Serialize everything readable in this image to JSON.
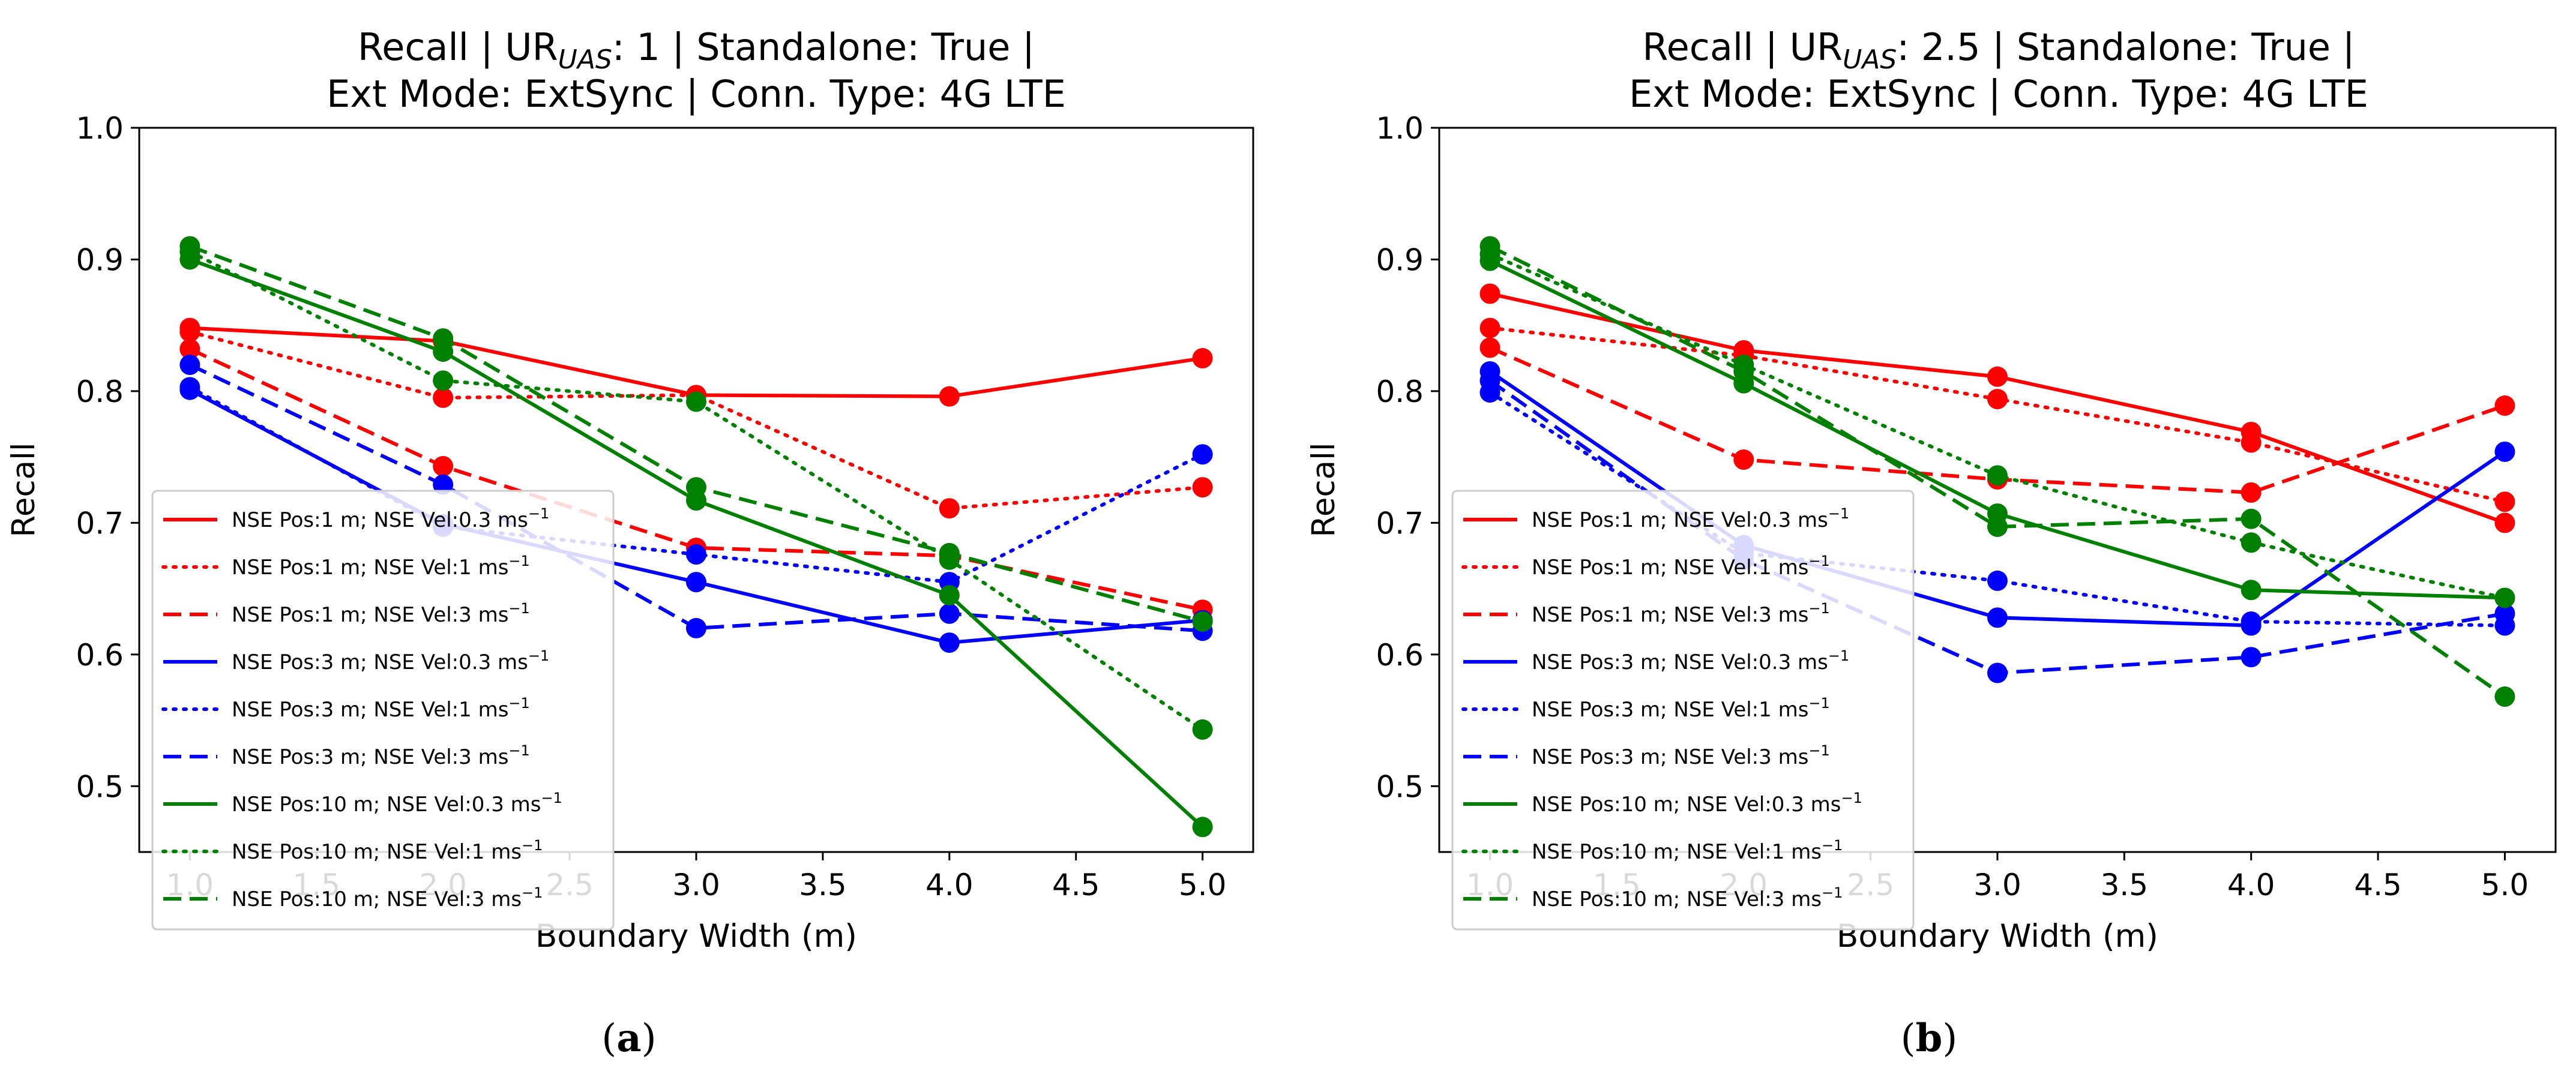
{
  "chart_data": [
    {
      "type": "line",
      "title_line1": "Recall | UR",
      "title_sub": "UAS",
      "title_line1_end": ": 1 | Standalone: True |",
      "title_line2": "Ext Mode: ExtSync | Conn. Type: 4G LTE",
      "xlabel": "Boundary  Width (m)",
      "ylabel": "Recall",
      "xlim": [
        0.8,
        5.2
      ],
      "ylim": [
        0.45,
        1.0
      ],
      "xticks": [
        "1.0",
        "1.5",
        "2.0",
        "2.5",
        "3.0",
        "3.5",
        "4.0",
        "4.5",
        "5.0"
      ],
      "yticks": [
        "0.5",
        "0.6",
        "0.7",
        "0.8",
        "0.9",
        "1.0"
      ],
      "legend_position": "lower-left",
      "caption_label": "a",
      "x": [
        1,
        2,
        3,
        4,
        5
      ],
      "series": [
        {
          "name": "NSE Pos:1 m; NSE Vel:0.3 ms",
          "unit_sup": "−1",
          "color": "#ff0000",
          "dash": "solid",
          "values": [
            0.848,
            0.838,
            0.797,
            0.796,
            0.825
          ]
        },
        {
          "name": "NSE Pos:1 m; NSE Vel:1 ms",
          "unit_sup": "−1",
          "color": "#ff0000",
          "dash": "dotted",
          "values": [
            0.845,
            0.795,
            0.797,
            0.711,
            0.727
          ]
        },
        {
          "name": "NSE Pos:1 m; NSE Vel:3 ms",
          "unit_sup": "−1",
          "color": "#ff0000",
          "dash": "dashed",
          "values": [
            0.832,
            0.743,
            0.681,
            0.675,
            0.634
          ]
        },
        {
          "name": "NSE Pos:3 m; NSE Vel:0.3 ms",
          "unit_sup": "−1",
          "color": "#0000ff",
          "dash": "solid",
          "values": [
            0.801,
            0.699,
            0.655,
            0.609,
            0.626
          ]
        },
        {
          "name": "NSE Pos:3 m; NSE Vel:1 ms",
          "unit_sup": "−1",
          "color": "#0000ff",
          "dash": "dotted",
          "values": [
            0.803,
            0.697,
            0.676,
            0.655,
            0.752
          ]
        },
        {
          "name": "NSE Pos:3 m; NSE Vel:3 ms",
          "unit_sup": "−1",
          "color": "#0000ff",
          "dash": "dashed",
          "values": [
            0.82,
            0.729,
            0.62,
            0.631,
            0.618
          ]
        },
        {
          "name": "NSE Pos:10 m; NSE Vel:0.3 ms",
          "unit_sup": "−1",
          "color": "#008000",
          "dash": "solid",
          "values": [
            0.9,
            0.83,
            0.717,
            0.645,
            0.469
          ]
        },
        {
          "name": "NSE Pos:10 m; NSE Vel:1 ms",
          "unit_sup": "−1",
          "color": "#008000",
          "dash": "dotted",
          "values": [
            0.906,
            0.808,
            0.792,
            0.672,
            0.543
          ]
        },
        {
          "name": "NSE Pos:10 m; NSE Vel:3 ms",
          "unit_sup": "−1",
          "color": "#008000",
          "dash": "dashed",
          "values": [
            0.91,
            0.84,
            0.727,
            0.677,
            0.625
          ]
        }
      ]
    },
    {
      "type": "line",
      "title_line1": "Recall | UR",
      "title_sub": "UAS",
      "title_line1_end": ": 2.5 | Standalone: True |",
      "title_line2": "Ext Mode: ExtSync | Conn. Type: 4G LTE",
      "xlabel": "Boundary  Width (m)",
      "ylabel": "Recall",
      "xlim": [
        0.8,
        5.2
      ],
      "ylim": [
        0.45,
        1.0
      ],
      "xticks": [
        "1.0",
        "1.5",
        "2.0",
        "2.5",
        "3.0",
        "3.5",
        "4.0",
        "4.5",
        "5.0"
      ],
      "yticks": [
        "0.5",
        "0.6",
        "0.7",
        "0.8",
        "0.9",
        "1.0"
      ],
      "legend_position": "lower-left",
      "caption_label": "b",
      "x": [
        1,
        2,
        3,
        4,
        5
      ],
      "series": [
        {
          "name": "NSE Pos:1 m; NSE Vel:0.3 ms",
          "unit_sup": "−1",
          "color": "#ff0000",
          "dash": "solid",
          "values": [
            0.874,
            0.831,
            0.811,
            0.769,
            0.7
          ]
        },
        {
          "name": "NSE Pos:1 m; NSE Vel:1 ms",
          "unit_sup": "−1",
          "color": "#ff0000",
          "dash": "dotted",
          "values": [
            0.848,
            0.827,
            0.794,
            0.761,
            0.716
          ]
        },
        {
          "name": "NSE Pos:1 m; NSE Vel:3 ms",
          "unit_sup": "−1",
          "color": "#ff0000",
          "dash": "dashed",
          "values": [
            0.833,
            0.748,
            0.733,
            0.723,
            0.789
          ]
        },
        {
          "name": "NSE Pos:3 m; NSE Vel:0.3 ms",
          "unit_sup": "−1",
          "color": "#0000ff",
          "dash": "solid",
          "values": [
            0.815,
            0.683,
            0.628,
            0.622,
            0.754
          ]
        },
        {
          "name": "NSE Pos:3 m; NSE Vel:1 ms",
          "unit_sup": "−1",
          "color": "#0000ff",
          "dash": "dotted",
          "values": [
            0.799,
            0.677,
            0.656,
            0.625,
            0.622
          ]
        },
        {
          "name": "NSE Pos:3 m; NSE Vel:3 ms",
          "unit_sup": "−1",
          "color": "#0000ff",
          "dash": "dashed",
          "values": [
            0.808,
            0.672,
            0.586,
            0.598,
            0.631
          ]
        },
        {
          "name": "NSE Pos:10 m; NSE Vel:0.3 ms",
          "unit_sup": "−1",
          "color": "#008000",
          "dash": "solid",
          "values": [
            0.899,
            0.806,
            0.707,
            0.649,
            0.643
          ]
        },
        {
          "name": "NSE Pos:10 m; NSE Vel:1 ms",
          "unit_sup": "−1",
          "color": "#008000",
          "dash": "dotted",
          "values": [
            0.904,
            0.82,
            0.736,
            0.685,
            0.643
          ]
        },
        {
          "name": "NSE Pos:10 m; NSE Vel:3 ms",
          "unit_sup": "−1",
          "color": "#008000",
          "dash": "dashed",
          "values": [
            0.91,
            0.815,
            0.697,
            0.703,
            0.568
          ]
        }
      ]
    }
  ]
}
